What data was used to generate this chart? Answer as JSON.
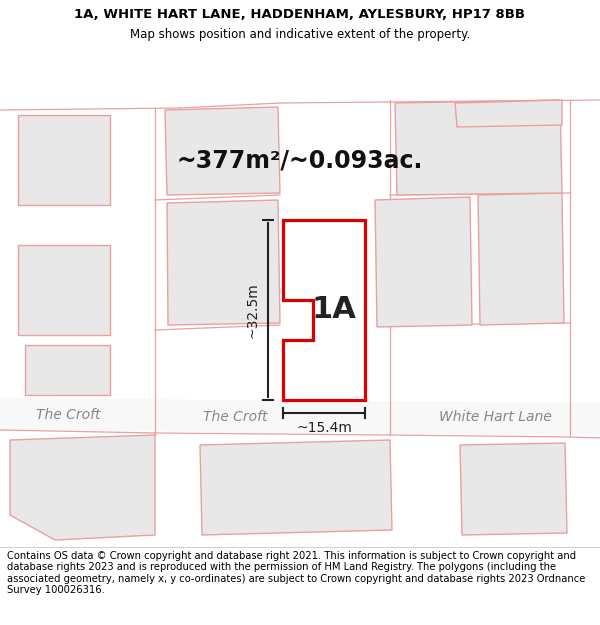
{
  "title_line1": "1A, WHITE HART LANE, HADDENHAM, AYLESBURY, HP17 8BB",
  "title_line2": "Map shows position and indicative extent of the property.",
  "area_label": "~377m²/~0.093ac.",
  "property_label": "1A",
  "dim_height": "~32.5m",
  "dim_width": "~15.4m",
  "street_label1": "The Croft",
  "street_label2": "The Croft",
  "street_label3": "White Hart Lane",
  "footer": "Contains OS data © Crown copyright and database right 2021. This information is subject to Crown copyright and database rights 2023 and is reproduced with the permission of HM Land Registry. The polygons (including the associated geometry, namely x, y co-ordinates) are subject to Crown copyright and database rights 2023 Ordnance Survey 100026316.",
  "bg_color": "#ffffff",
  "map_bg": "#f0f0f0",
  "property_fill": "#ffffff",
  "property_edge": "#dd0000",
  "other_poly_edge": "#e8a0a0",
  "other_poly_fill": "#e8e8e8",
  "dim_color": "#222222",
  "title_fontsize": 9.5,
  "subtitle_fontsize": 8.5,
  "area_fontsize": 17,
  "label_fontsize": 22,
  "street_fontsize": 10,
  "footer_fontsize": 7.2
}
